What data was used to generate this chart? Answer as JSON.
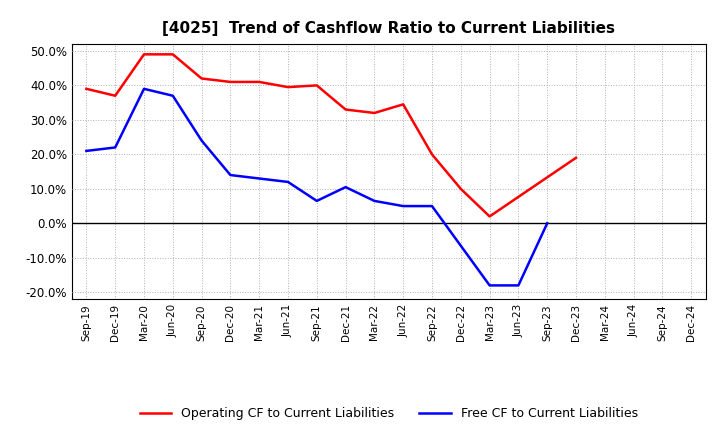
{
  "title": "[4025]  Trend of Cashflow Ratio to Current Liabilities",
  "x_labels": [
    "Sep-19",
    "Dec-19",
    "Mar-20",
    "Jun-20",
    "Sep-20",
    "Dec-20",
    "Mar-21",
    "Jun-21",
    "Sep-21",
    "Dec-21",
    "Mar-22",
    "Jun-22",
    "Sep-22",
    "Dec-22",
    "Mar-23",
    "Jun-23",
    "Sep-23",
    "Dec-23",
    "Mar-24",
    "Jun-24",
    "Sep-24",
    "Dec-24"
  ],
  "operating_cf": [
    0.39,
    0.37,
    0.49,
    0.49,
    0.42,
    0.41,
    0.41,
    0.395,
    0.4,
    0.33,
    0.32,
    0.345,
    0.2,
    0.1,
    0.02,
    null,
    null,
    0.19,
    null,
    null,
    null,
    null
  ],
  "free_cf": [
    0.21,
    0.22,
    0.39,
    0.37,
    0.24,
    0.14,
    0.13,
    0.12,
    0.065,
    0.105,
    0.065,
    0.05,
    0.05,
    -0.065,
    -0.18,
    -0.18,
    0.0,
    null,
    null,
    null,
    null,
    null
  ],
  "ylim": [
    -0.22,
    0.52
  ],
  "yticks": [
    -0.2,
    -0.1,
    0.0,
    0.1,
    0.2,
    0.3,
    0.4,
    0.5
  ],
  "operating_color": "#ff0000",
  "free_color": "#0000ff",
  "background_color": "#ffffff",
  "grid_color": "#b0b0b0",
  "legend_op": "Operating CF to Current Liabilities",
  "legend_free": "Free CF to Current Liabilities"
}
